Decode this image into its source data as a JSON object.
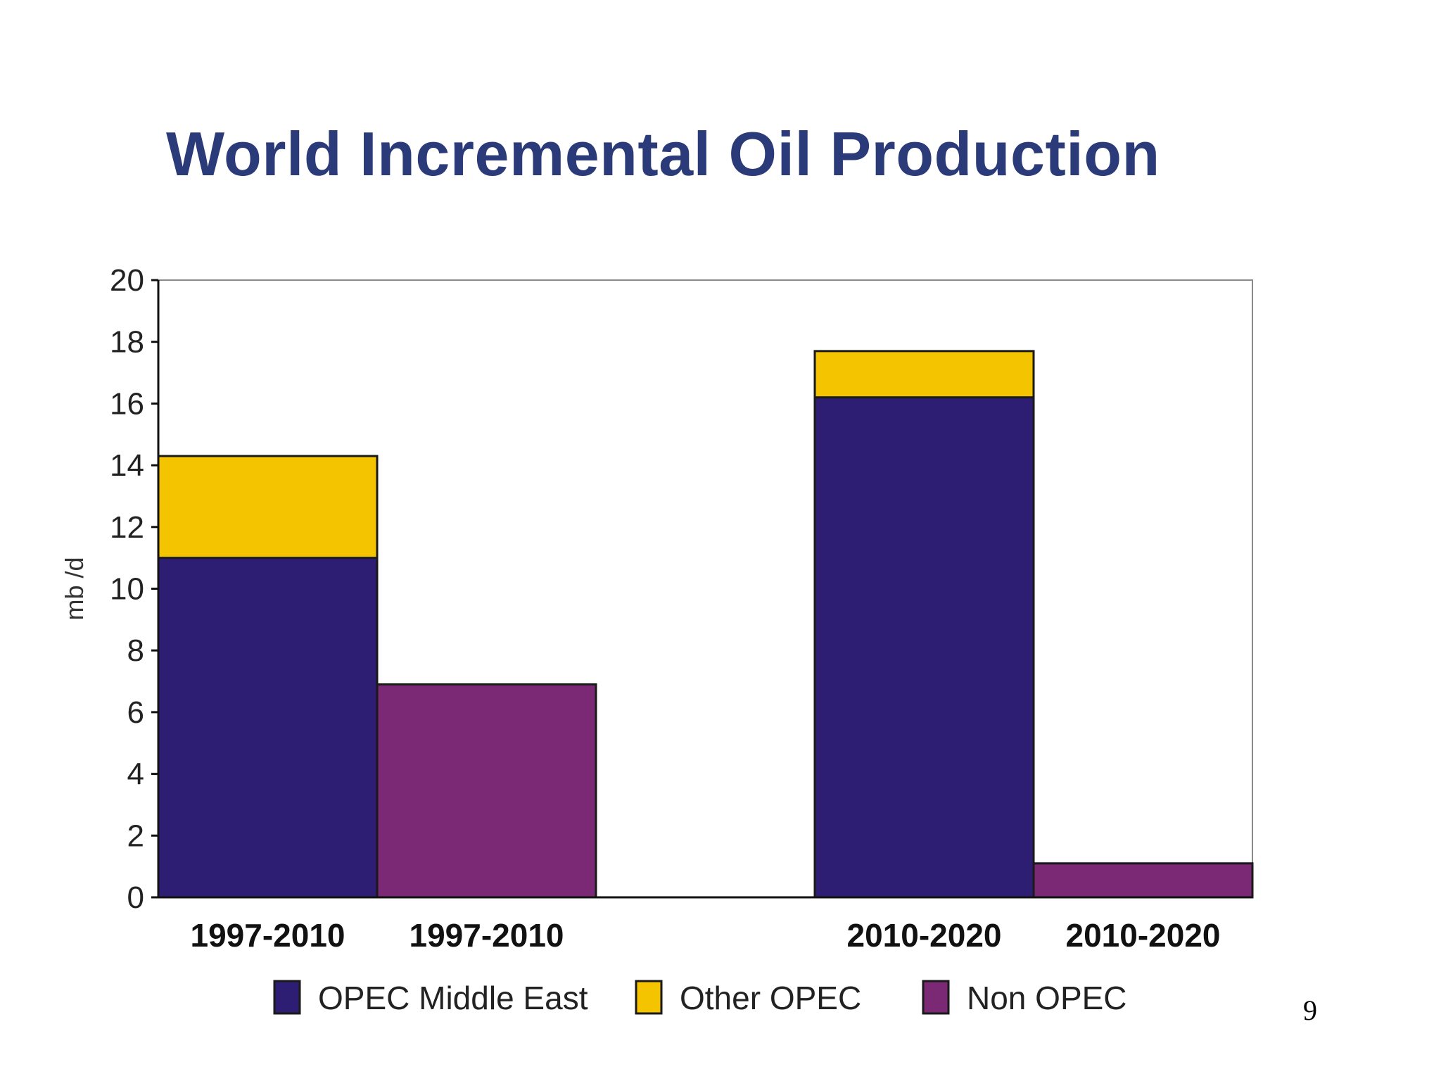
{
  "title": "World Incremental Oil Production",
  "page_number": "9",
  "colors": {
    "opec_middle_east": "#2e1e73",
    "other_opec": "#f5c400",
    "non_opec": "#7b2974",
    "title": "#2b3a78"
  },
  "chart_data": {
    "type": "bar",
    "stacked": true,
    "title": "",
    "xlabel": "",
    "ylabel": "mb /d",
    "ylim": [
      0,
      20
    ],
    "yticks": [
      0,
      2,
      4,
      6,
      8,
      10,
      12,
      14,
      16,
      18,
      20
    ],
    "grid": false,
    "legend_position": "bottom",
    "categories": [
      "1997-2010",
      "1997-2010",
      "",
      "2010-2020",
      "2010-2020"
    ],
    "series": [
      {
        "name": "OPEC Middle East",
        "color": "#2e1e73",
        "values": [
          11.0,
          0,
          0,
          16.2,
          0
        ]
      },
      {
        "name": "Other OPEC",
        "color": "#f5c400",
        "values": [
          3.3,
          0,
          0,
          1.5,
          0
        ]
      },
      {
        "name": "Non OPEC",
        "color": "#7b2974",
        "values": [
          0,
          6.9,
          0,
          0,
          1.1
        ]
      }
    ]
  }
}
